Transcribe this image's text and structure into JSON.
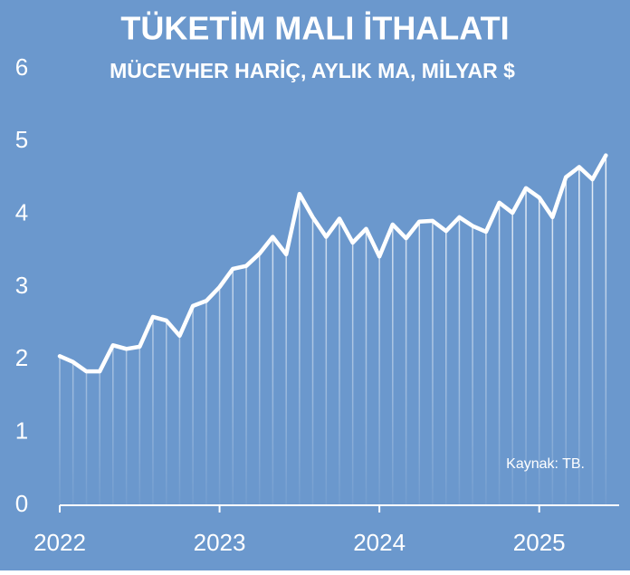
{
  "chart_data": {
    "type": "line",
    "title": "TÜKETİM MALI İTHALATI",
    "subtitle": "MÜCEVHER HARİÇ, AYLIK MA, MİLYAR $",
    "source": "Kaynak: TB.",
    "x": [
      2022,
      2022.083,
      2022.167,
      2022.25,
      2022.333,
      2022.417,
      2022.5,
      2022.583,
      2022.667,
      2022.75,
      2022.833,
      2022.917,
      2023,
      2023.083,
      2023.167,
      2023.25,
      2023.333,
      2023.417,
      2023.5,
      2023.583,
      2023.667,
      2023.75,
      2023.833,
      2023.917,
      2024,
      2024.083,
      2024.167,
      2024.25,
      2024.333,
      2024.417,
      2024.5,
      2024.583,
      2024.667,
      2024.75,
      2024.833,
      2024.917,
      2025,
      2025.083,
      2025.167,
      2025.25,
      2025.333,
      2025.417
    ],
    "values": [
      2.05,
      1.97,
      1.84,
      1.84,
      2.2,
      2.15,
      2.18,
      2.59,
      2.54,
      2.33,
      2.74,
      2.81,
      3.0,
      3.25,
      3.29,
      3.46,
      3.69,
      3.45,
      4.28,
      3.96,
      3.69,
      3.94,
      3.61,
      3.8,
      3.42,
      3.86,
      3.67,
      3.9,
      3.91,
      3.77,
      3.96,
      3.84,
      3.76,
      4.16,
      4.02,
      4.36,
      4.23,
      3.96,
      4.51,
      4.65,
      4.48,
      4.81
    ],
    "color": "#ffffff",
    "background": "#6b98cd",
    "xlim": [
      2022,
      2025.5
    ],
    "xticks": [
      2022,
      2023,
      2024,
      2025
    ],
    "ylim": [
      0,
      6
    ],
    "yticks": [
      0,
      1,
      2,
      3,
      4,
      5,
      6
    ],
    "drop_lines": true
  }
}
